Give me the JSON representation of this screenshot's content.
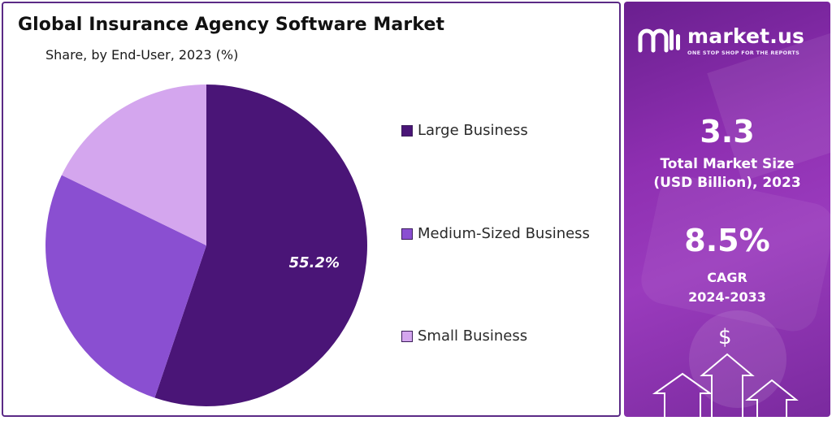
{
  "title": "Global Insurance Agency Software Market",
  "subtitle": "Share, by End-User, 2023 (%)",
  "brand": {
    "name": "market.us",
    "tagline": "ONE STOP SHOP FOR THE REPORTS"
  },
  "stats": {
    "market_size_value": "3.3",
    "market_size_label_line1": "Total Market Size",
    "market_size_label_line2": "(USD Billion), 2023",
    "cagr_value": "8.5%",
    "cagr_label_line1": "CAGR",
    "cagr_label_line2": "2024-2033"
  },
  "icons": {
    "dollar": "$"
  },
  "colors": {
    "large_business": "#4a1577",
    "medium_business": "#8a4fd1",
    "small_business": "#d4a6ee",
    "panel_border": "#5b2a86",
    "right_panel": "#8e2fb1"
  },
  "chart_data": {
    "type": "pie",
    "title": "Global Insurance Agency Software Market",
    "subtitle": "Share, by End-User, 2023 (%)",
    "categories": [
      "Large Business",
      "Medium-Sized Business",
      "Small Business"
    ],
    "values": [
      55.2,
      27.0,
      17.8
    ],
    "data_labels": [
      "55.2%",
      "",
      ""
    ],
    "colors": [
      "#4a1577",
      "#8a4fd1",
      "#d4a6ee"
    ],
    "legend_position": "right"
  }
}
